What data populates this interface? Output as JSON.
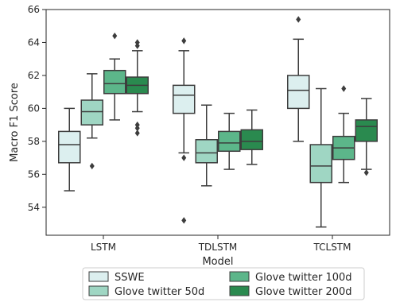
{
  "chart_data": {
    "type": "boxplot",
    "xlabel": "Model",
    "ylabel": "Macro F1 Score",
    "ylim": [
      52.3,
      66
    ],
    "yticks": [
      54,
      56,
      58,
      60,
      62,
      64,
      66
    ],
    "categories": [
      "LSTM",
      "TDLSTM",
      "TCLSTM"
    ],
    "legend_position": "bottom-center",
    "series": [
      {
        "name": "SSWE",
        "color": "#dcefef",
        "boxes": [
          {
            "whislo": 55.0,
            "q1": 56.7,
            "med": 57.8,
            "q3": 58.6,
            "whishi": 60.0,
            "fliers": []
          },
          {
            "whislo": 57.3,
            "q1": 59.7,
            "med": 60.8,
            "q3": 61.4,
            "whishi": 63.5,
            "fliers": [
              64.1,
              57.0,
              53.2
            ]
          },
          {
            "whislo": 58.0,
            "q1": 60.0,
            "med": 61.1,
            "q3": 62.0,
            "whishi": 64.2,
            "fliers": [
              65.4
            ]
          }
        ]
      },
      {
        "name": "Glove twitter 50d",
        "color": "#9fd6c3",
        "boxes": [
          {
            "whislo": 58.2,
            "q1": 59.0,
            "med": 59.8,
            "q3": 60.5,
            "whishi": 62.1,
            "fliers": [
              56.5
            ]
          },
          {
            "whislo": 55.3,
            "q1": 56.7,
            "med": 57.3,
            "q3": 58.1,
            "whishi": 60.2,
            "fliers": []
          },
          {
            "whislo": 52.8,
            "q1": 55.5,
            "med": 56.5,
            "q3": 57.8,
            "whishi": 61.2,
            "fliers": []
          }
        ]
      },
      {
        "name": "Glove twitter 100d",
        "color": "#5cb68a",
        "boxes": [
          {
            "whislo": 59.3,
            "q1": 60.9,
            "med": 61.5,
            "q3": 62.3,
            "whishi": 63.0,
            "fliers": [
              64.4
            ]
          },
          {
            "whislo": 56.3,
            "q1": 57.4,
            "med": 57.9,
            "q3": 58.6,
            "whishi": 59.7,
            "fliers": []
          },
          {
            "whislo": 55.5,
            "q1": 56.9,
            "med": 57.6,
            "q3": 58.3,
            "whishi": 59.7,
            "fliers": [
              61.2
            ]
          }
        ]
      },
      {
        "name": "Glove twitter 200d",
        "color": "#2a8a4f",
        "boxes": [
          {
            "whislo": 59.8,
            "q1": 60.9,
            "med": 61.4,
            "q3": 61.9,
            "whishi": 63.5,
            "fliers": [
              64.0,
              63.8,
              59.0,
              58.8,
              58.5
            ]
          },
          {
            "whislo": 56.6,
            "q1": 57.5,
            "med": 58.0,
            "q3": 58.7,
            "whishi": 59.9,
            "fliers": []
          },
          {
            "whislo": 56.3,
            "q1": 58.0,
            "med": 58.9,
            "q3": 59.3,
            "whishi": 60.6,
            "fliers": [
              56.1
            ]
          }
        ]
      }
    ]
  }
}
